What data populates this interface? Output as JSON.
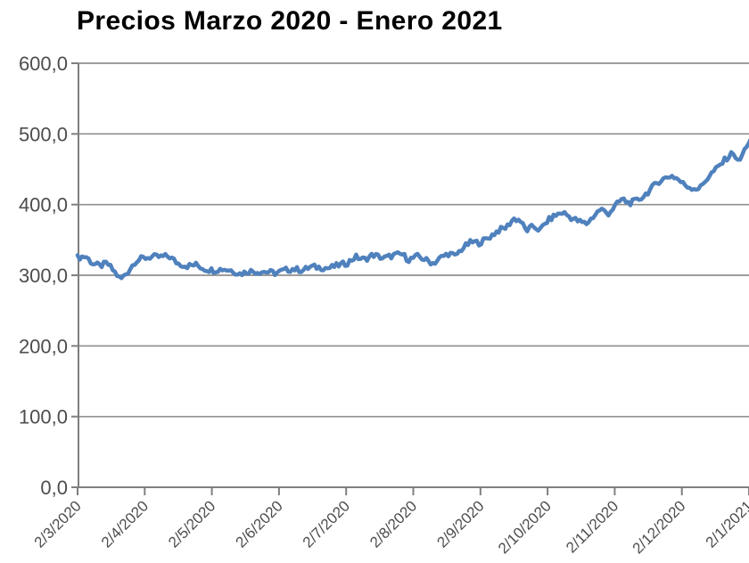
{
  "page": {
    "background_color": "#ffffff"
  },
  "header": {
    "title": "Precios Marzo 2020 - Enero 2021"
  },
  "chart_data": {
    "type": "line",
    "title": "Precios Marzo 2020 - Enero 2021",
    "xlabel": "",
    "ylabel": "",
    "ylim": [
      0,
      600
    ],
    "y_grid_step": 100,
    "grid": "horizontal",
    "legend": "none",
    "y_tick_labels_top_to_bottom": [
      "600,0",
      "500,0",
      "400,0",
      "300,0",
      "200,0",
      "100,0",
      "0,0"
    ],
    "x_tick_labels": [
      "2/3/2020",
      "2/4/2020",
      "2/5/2020",
      "2/6/2020",
      "2/7/2020",
      "2/8/2020",
      "2/9/2020",
      "2/10/2020",
      "2/11/2020",
      "2/12/2020",
      "2/1/2021"
    ],
    "x_unit": "month-tick index, 0 = 2/3/2020, 10 = 2/1/2021",
    "colors": {
      "line": "#4f81bd",
      "gridline": "#8f8f8f",
      "axis": "#7f7f7f",
      "tick_label": "#4d4d4d",
      "title": "#000000"
    },
    "series": [
      {
        "name": "Precios",
        "color": "#4f81bd",
        "daily_noise_amplitude": 4,
        "samples": 308,
        "anchor_points_month_value": [
          [
            0,
            325
          ],
          [
            0.12,
            327
          ],
          [
            0.22,
            317
          ],
          [
            0.33,
            313
          ],
          [
            0.44,
            317
          ],
          [
            0.54,
            306
          ],
          [
            0.64,
            294
          ],
          [
            0.75,
            305
          ],
          [
            0.86,
            320
          ],
          [
            0.97,
            324
          ],
          [
            1.1,
            326
          ],
          [
            1.23,
            326
          ],
          [
            1.36,
            327
          ],
          [
            1.49,
            317
          ],
          [
            1.63,
            313
          ],
          [
            1.76,
            315
          ],
          [
            1.89,
            309
          ],
          [
            2.02,
            307
          ],
          [
            2.16,
            309
          ],
          [
            2.29,
            307
          ],
          [
            2.42,
            302
          ],
          [
            2.55,
            306
          ],
          [
            2.69,
            305
          ],
          [
            2.82,
            305
          ],
          [
            2.95,
            303
          ],
          [
            3.08,
            307
          ],
          [
            3.21,
            309
          ],
          [
            3.35,
            307
          ],
          [
            3.48,
            312
          ],
          [
            3.61,
            311
          ],
          [
            3.74,
            310
          ],
          [
            3.88,
            314
          ],
          [
            4.01,
            317
          ],
          [
            4.14,
            326
          ],
          [
            4.27,
            322
          ],
          [
            4.4,
            329
          ],
          [
            4.56,
            324
          ],
          [
            4.7,
            328
          ],
          [
            4.83,
            330
          ],
          [
            4.93,
            322
          ],
          [
            5.07,
            327
          ],
          [
            5.2,
            321
          ],
          [
            5.3,
            317
          ],
          [
            5.41,
            325
          ],
          [
            5.53,
            331
          ],
          [
            5.62,
            327
          ],
          [
            5.73,
            338
          ],
          [
            5.86,
            347
          ],
          [
            5.99,
            346
          ],
          [
            6.12,
            353
          ],
          [
            6.26,
            363
          ],
          [
            6.39,
            368
          ],
          [
            6.49,
            380
          ],
          [
            6.59,
            378
          ],
          [
            6.68,
            363
          ],
          [
            6.79,
            369
          ],
          [
            6.89,
            364
          ],
          [
            7,
            377
          ],
          [
            7.12,
            385
          ],
          [
            7.23,
            389
          ],
          [
            7.34,
            382
          ],
          [
            7.47,
            376
          ],
          [
            7.58,
            373
          ],
          [
            7.68,
            383
          ],
          [
            7.79,
            394
          ],
          [
            7.9,
            387
          ],
          [
            8,
            397
          ],
          [
            8.11,
            408
          ],
          [
            8.21,
            402
          ],
          [
            8.32,
            405
          ],
          [
            8.43,
            412
          ],
          [
            8.53,
            421
          ],
          [
            8.64,
            432
          ],
          [
            8.74,
            437
          ],
          [
            8.84,
            441
          ],
          [
            8.93,
            437
          ],
          [
            9.01,
            430
          ],
          [
            9.1,
            425
          ],
          [
            9.19,
            423
          ],
          [
            9.27,
            423
          ],
          [
            9.35,
            434
          ],
          [
            9.43,
            443
          ],
          [
            9.51,
            450
          ],
          [
            9.59,
            458
          ],
          [
            9.67,
            466
          ],
          [
            9.77,
            474
          ],
          [
            9.84,
            459
          ],
          [
            9.9,
            470
          ],
          [
            9.97,
            485
          ],
          [
            10.03,
            492
          ]
        ]
      }
    ]
  }
}
